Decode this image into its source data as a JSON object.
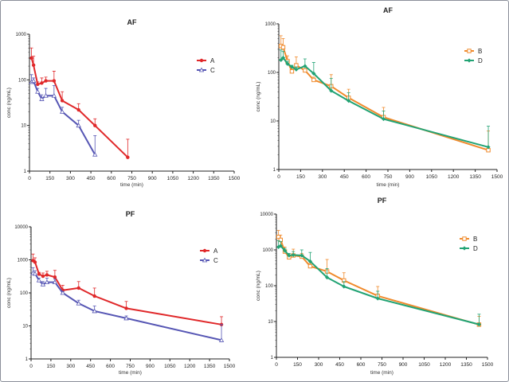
{
  "chart_data": [
    {
      "type": "line",
      "title": "AF",
      "xlabel": "time (min)",
      "ylabel": "conc (ng/mL)",
      "xlim": [
        0,
        1500
      ],
      "ylim": [
        1,
        1000
      ],
      "yscale": "log",
      "xticks": [
        0,
        150,
        300,
        450,
        600,
        750,
        900,
        1050,
        1200,
        1350,
        1500
      ],
      "yticks": [
        1,
        10,
        100,
        1000
      ],
      "ytick_labels": [
        "1",
        "10",
        "100",
        "1000"
      ],
      "grid": false,
      "legend": "right",
      "series": [
        {
          "name": "A",
          "color": "#e0282a",
          "marker": "circle",
          "x": [
            15,
            30,
            60,
            90,
            120,
            180,
            240,
            360,
            480,
            720
          ],
          "y": [
            300,
            210,
            80,
            85,
            95,
            95,
            35,
            22,
            10,
            2
          ],
          "err_upper": [
            500,
            330,
            90,
            110,
            115,
            155,
            55,
            30,
            14,
            5
          ]
        },
        {
          "name": "C",
          "color": "#5656b4",
          "marker": "triangle",
          "x": [
            15,
            30,
            60,
            90,
            120,
            180,
            240,
            360,
            480
          ],
          "y": [
            90,
            95,
            55,
            38,
            45,
            45,
            20,
            10,
            2.3
          ],
          "err_upper": [
            130,
            110,
            65,
            47,
            65,
            75,
            25,
            13,
            6
          ]
        }
      ]
    },
    {
      "type": "line",
      "title": "AF",
      "xlabel": "time (min)",
      "ylabel": "conc (ng/mL)",
      "xlim": [
        0,
        1500
      ],
      "ylim": [
        1,
        1000
      ],
      "yscale": "log",
      "xticks": [
        0,
        150,
        300,
        450,
        600,
        750,
        900,
        1050,
        1200,
        1350,
        1500
      ],
      "yticks": [
        1,
        10,
        100,
        1000
      ],
      "ytick_labels": [
        "1",
        "10",
        "100",
        "1000"
      ],
      "grid": false,
      "legend": "right",
      "series": [
        {
          "name": "B",
          "color": "#f08a2c",
          "marker": "square",
          "x": [
            15,
            30,
            60,
            90,
            120,
            180,
            240,
            360,
            480,
            720,
            1440
          ],
          "y": [
            350,
            330,
            170,
            105,
            140,
            110,
            70,
            52,
            30,
            12,
            2.5
          ],
          "err_upper": [
            570,
            500,
            220,
            130,
            210,
            130,
            80,
            90,
            45,
            19,
            6.2
          ]
        },
        {
          "name": "D",
          "color": "#22a374",
          "marker": "diamond",
          "x": [
            15,
            30,
            60,
            90,
            120,
            180,
            240,
            360,
            480,
            720,
            1440
          ],
          "y": [
            180,
            200,
            150,
            130,
            115,
            135,
            95,
            42,
            26,
            11,
            2.9
          ],
          "err_upper": [
            290,
            270,
            170,
            140,
            130,
            190,
            160,
            75,
            38,
            16,
            7.8
          ]
        }
      ]
    },
    {
      "type": "line",
      "title": "PF",
      "xlabel": "time (min)",
      "ylabel": "conc (ng/mL)",
      "xlim": [
        0,
        1500
      ],
      "ylim": [
        1,
        10000
      ],
      "yscale": "log",
      "xticks": [
        0,
        150,
        300,
        450,
        600,
        750,
        900,
        1050,
        1200,
        1350,
        1500
      ],
      "yticks": [
        1,
        10,
        100,
        1000,
        10000
      ],
      "ytick_labels": [
        "1",
        "10",
        "100",
        "1000",
        "10000"
      ],
      "grid": false,
      "legend": "right",
      "series": [
        {
          "name": "A",
          "color": "#e0282a",
          "marker": "circle",
          "x": [
            15,
            30,
            60,
            90,
            120,
            180,
            240,
            360,
            480,
            720,
            1440
          ],
          "y": [
            950,
            850,
            370,
            320,
            350,
            300,
            120,
            140,
            80,
            34,
            11
          ],
          "err_upper": [
            1500,
            1150,
            420,
            400,
            450,
            480,
            170,
            220,
            140,
            55,
            19
          ]
        },
        {
          "name": "C",
          "color": "#5656b4",
          "marker": "triangle",
          "x": [
            15,
            30,
            60,
            90,
            120,
            180,
            240,
            360,
            480,
            720,
            1440
          ],
          "y": [
            400,
            380,
            240,
            180,
            210,
            210,
            100,
            48,
            28,
            17,
            3.7
          ],
          "err_upper": [
            580,
            470,
            280,
            220,
            280,
            260,
            110,
            60,
            40,
            20,
            11
          ]
        }
      ]
    },
    {
      "type": "line",
      "title": "PF",
      "xlabel": "time (min)",
      "ylabel": "conc (ng/mL)",
      "xlim": [
        0,
        1500
      ],
      "ylim": [
        1,
        10000
      ],
      "yscale": "log",
      "xticks": [
        0,
        150,
        300,
        450,
        600,
        750,
        900,
        1050,
        1200,
        1350,
        1500
      ],
      "yticks": [
        1,
        10,
        100,
        1000,
        10000
      ],
      "ytick_labels": [
        "1",
        "10",
        "100",
        "1000",
        "10000"
      ],
      "grid": false,
      "legend": "right",
      "series": [
        {
          "name": "B",
          "color": "#f08a2c",
          "marker": "square",
          "x": [
            15,
            30,
            60,
            90,
            120,
            180,
            240,
            360,
            480,
            720,
            1440
          ],
          "y": [
            2300,
            1900,
            900,
            620,
            700,
            650,
            350,
            250,
            140,
            52,
            8.2
          ],
          "err_upper": [
            3500,
            2600,
            1200,
            700,
            1050,
            800,
            420,
            540,
            230,
            95,
            14
          ]
        },
        {
          "name": "D",
          "color": "#22a374",
          "marker": "diamond",
          "x": [
            15,
            30,
            60,
            90,
            120,
            180,
            240,
            360,
            480,
            720,
            1440
          ],
          "y": [
            1200,
            1300,
            950,
            700,
            720,
            700,
            480,
            170,
            95,
            44,
            8.3
          ],
          "err_upper": [
            1800,
            1700,
            1100,
            800,
            900,
            1000,
            850,
            300,
            130,
            70,
            16
          ]
        }
      ]
    }
  ]
}
